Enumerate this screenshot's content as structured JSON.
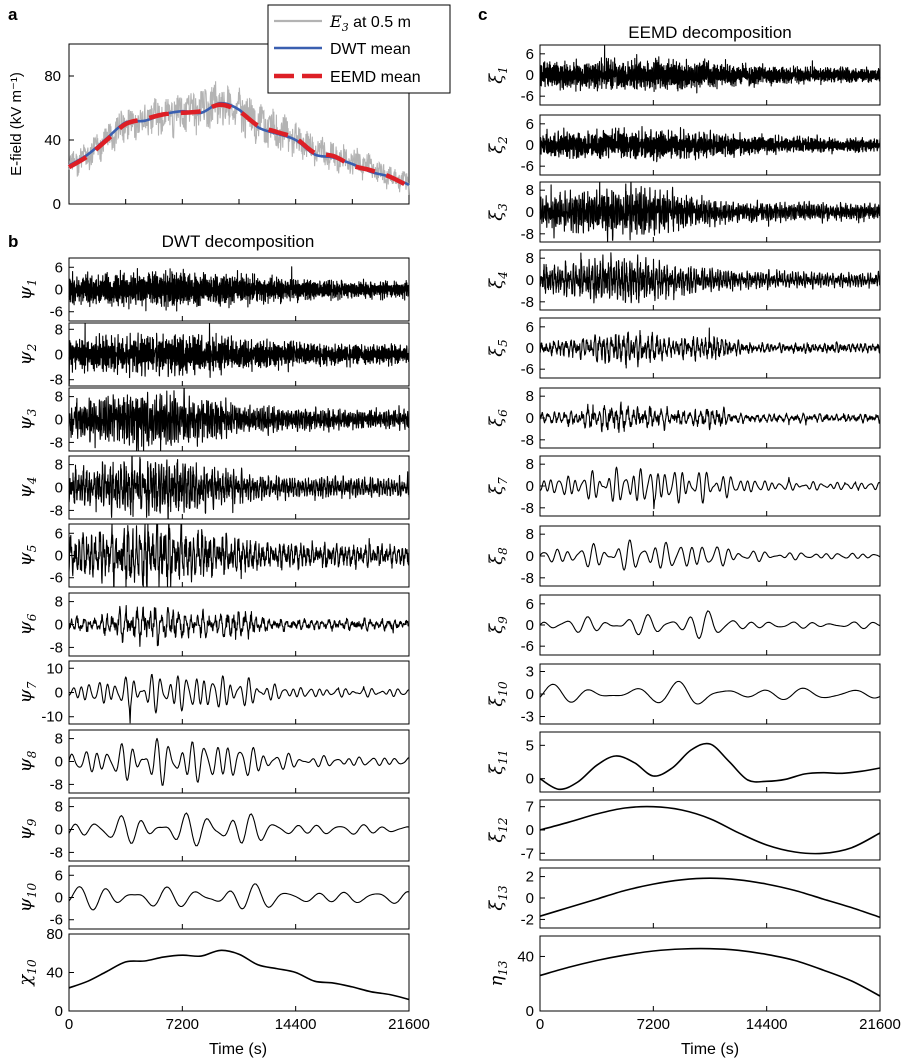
{
  "figure": {
    "panel_labels": {
      "a": "a",
      "b": "b",
      "c": "c"
    },
    "time_label": "Time (s)",
    "x_ticks": [
      0,
      7200,
      14400,
      21600
    ]
  },
  "chart_data": [
    {
      "type": "line",
      "panel": "a",
      "ylabel": "E-field (kV m⁻¹)",
      "xlim": [
        0,
        21600
      ],
      "ylim": [
        0,
        100
      ],
      "yticks": [
        0,
        40,
        80
      ],
      "legend": {
        "placement": "top-right",
        "entries": [
          {
            "label_symbol": "E",
            "label_sub": "3",
            "label_rest": " at 0.5 m",
            "color": "#b3b3b3",
            "style": "solid"
          },
          {
            "label": "DWT mean",
            "color": "#3a5fb0",
            "style": "solid"
          },
          {
            "label": "EEMD mean",
            "color": "#dd1f26",
            "style": "dashed"
          }
        ]
      },
      "series": [
        {
          "name": "E3 at 0.5 m",
          "color": "#b3b3b3",
          "kind": "raw",
          "noise_amplitude": 10,
          "x": [
            0,
            1200,
            2400,
            3600,
            4800,
            6000,
            7200,
            8400,
            9600,
            10800,
            12000,
            13200,
            14400,
            15600,
            16800,
            18000,
            19200,
            20400,
            21600
          ],
          "y": [
            25,
            30,
            40,
            50,
            52,
            55,
            57,
            60,
            62,
            58,
            50,
            45,
            40,
            33,
            30,
            27,
            22,
            17,
            12
          ]
        },
        {
          "name": "DWT mean",
          "color": "#3a5fb0",
          "x": [
            0,
            1200,
            2400,
            3600,
            4800,
            6000,
            7200,
            8400,
            9600,
            10800,
            12000,
            13200,
            14400,
            15600,
            16800,
            18000,
            19200,
            20400,
            21600
          ],
          "y": [
            24,
            31,
            41,
            51,
            52,
            56,
            58,
            57,
            63,
            59,
            48,
            44,
            40,
            31,
            29,
            25,
            20,
            17,
            12
          ]
        },
        {
          "name": "EEMD mean",
          "color": "#dd1f26",
          "x": [
            0,
            1200,
            2400,
            3600,
            4800,
            6000,
            7200,
            8400,
            9600,
            10800,
            12000,
            13200,
            14400,
            15600,
            16800,
            18000,
            19200,
            20400,
            21600
          ],
          "y": [
            23,
            30,
            40,
            50,
            53,
            56,
            57,
            58,
            62,
            58,
            49,
            45,
            41,
            32,
            30,
            24,
            21,
            17,
            11
          ]
        }
      ]
    },
    {
      "type": "line",
      "panel": "b",
      "title": "DWT decomposition",
      "xlim": [
        0,
        21600
      ],
      "components": [
        {
          "sym": "ψ",
          "sub": "1",
          "yticks": [
            6,
            0,
            -6
          ],
          "ylim": [
            -8.5,
            8.5
          ],
          "amp": 3.5,
          "period": 40,
          "env": "mid"
        },
        {
          "sym": "ψ",
          "sub": "2",
          "yticks": [
            8,
            0,
            -8
          ],
          "ylim": [
            -10,
            10
          ],
          "amp": 4.5,
          "period": 70,
          "env": "mid"
        },
        {
          "sym": "ψ",
          "sub": "3",
          "yticks": [
            8,
            0,
            -8
          ],
          "ylim": [
            -11,
            11
          ],
          "amp": 5,
          "period": 110,
          "env": "early"
        },
        {
          "sym": "ψ",
          "sub": "4",
          "yticks": [
            8,
            0,
            -8
          ],
          "ylim": [
            -11,
            11
          ],
          "amp": 5,
          "period": 170,
          "env": "early"
        },
        {
          "sym": "ψ",
          "sub": "5",
          "yticks": [
            6,
            0,
            -6
          ],
          "ylim": [
            -8.5,
            8.5
          ],
          "amp": 4.5,
          "period": 260,
          "env": "early"
        },
        {
          "sym": "ψ",
          "sub": "6",
          "yticks": [
            8,
            0,
            -8
          ],
          "ylim": [
            -11,
            11
          ],
          "amp": 4.5,
          "period": 380,
          "env": "spiky"
        },
        {
          "sym": "ψ",
          "sub": "7",
          "yticks": [
            10,
            0,
            -10
          ],
          "ylim": [
            -13,
            13
          ],
          "amp": 6.5,
          "period": 560,
          "env": "burst"
        },
        {
          "sym": "ψ",
          "sub": "8",
          "yticks": [
            8,
            0,
            -8
          ],
          "ylim": [
            -11,
            11
          ],
          "amp": 6.5,
          "period": 760,
          "env": "burst"
        },
        {
          "sym": "ψ",
          "sub": "9",
          "yticks": [
            8,
            0,
            -8
          ],
          "ylim": [
            -11,
            11
          ],
          "amp": 6,
          "period": 1400,
          "env": "late"
        },
        {
          "sym": "ψ",
          "sub": "10",
          "yticks": [
            6,
            0,
            -6
          ],
          "ylim": [
            -8.5,
            8.5
          ],
          "amp": 5,
          "period": 1900,
          "env": "wave"
        },
        {
          "sym": "χ",
          "sub": "10",
          "yticks": [
            80,
            40,
            0
          ],
          "ylim": [
            0,
            80
          ],
          "smooth": true,
          "x": [
            0,
            1200,
            2400,
            3600,
            4800,
            6000,
            7200,
            8400,
            9600,
            10800,
            12000,
            13200,
            14400,
            15600,
            16800,
            18000,
            19200,
            20400,
            21600
          ],
          "y": [
            24,
            31,
            41,
            51,
            52,
            56,
            58,
            57,
            63,
            59,
            48,
            44,
            40,
            31,
            29,
            25,
            20,
            17,
            12
          ]
        }
      ]
    },
    {
      "type": "line",
      "panel": "c",
      "title": "EEMD decomposition",
      "xlim": [
        0,
        21600
      ],
      "components": [
        {
          "sym": "ξ",
          "sub": "1",
          "yticks": [
            6,
            0,
            -6
          ],
          "ylim": [
            -8.5,
            8.5
          ],
          "amp": 3.2,
          "period": 40,
          "env": "mid"
        },
        {
          "sym": "ξ",
          "sub": "2",
          "yticks": [
            6,
            0,
            -6
          ],
          "ylim": [
            -8.5,
            8.5
          ],
          "amp": 3,
          "period": 70,
          "env": "mid"
        },
        {
          "sym": "ξ",
          "sub": "3",
          "yticks": [
            8,
            0,
            -8
          ],
          "ylim": [
            -11,
            11
          ],
          "amp": 4.5,
          "period": 110,
          "env": "early"
        },
        {
          "sym": "ξ",
          "sub": "4",
          "yticks": [
            8,
            0,
            -8
          ],
          "ylim": [
            -11,
            11
          ],
          "amp": 4,
          "period": 170,
          "env": "early"
        },
        {
          "sym": "ξ",
          "sub": "5",
          "yticks": [
            6,
            0,
            -6
          ],
          "ylim": [
            -8.5,
            8.5
          ],
          "amp": 3.2,
          "period": 260,
          "env": "spiky"
        },
        {
          "sym": "ξ",
          "sub": "6",
          "yticks": [
            8,
            0,
            -8
          ],
          "ylim": [
            -11,
            11
          ],
          "amp": 3.5,
          "period": 360,
          "env": "spiky"
        },
        {
          "sym": "ξ",
          "sub": "7",
          "yticks": [
            8,
            0,
            -8
          ],
          "ylim": [
            -11,
            11
          ],
          "amp": 5.5,
          "period": 520,
          "env": "burst"
        },
        {
          "sym": "ξ",
          "sub": "8",
          "yticks": [
            8,
            0,
            -8
          ],
          "ylim": [
            -11,
            11
          ],
          "amp": 4.5,
          "period": 780,
          "env": "burst"
        },
        {
          "sym": "ξ",
          "sub": "9",
          "yticks": [
            6,
            0,
            -6
          ],
          "ylim": [
            -8.5,
            8.5
          ],
          "amp": 3,
          "period": 1300,
          "env": "late"
        },
        {
          "sym": "ξ",
          "sub": "10",
          "yticks": [
            3,
            0,
            -3
          ],
          "ylim": [
            -4,
            4
          ],
          "amp": 2.2,
          "period": 2700,
          "env": "wave"
        },
        {
          "sym": "ξ",
          "sub": "11",
          "yticks": [
            5,
            0
          ],
          "ylim": [
            -2,
            7
          ],
          "smooth": true,
          "x": [
            0,
            1200,
            2400,
            3600,
            4800,
            6000,
            7200,
            8400,
            9600,
            10800,
            12000,
            13200,
            14400,
            15600,
            16800,
            18000,
            19200,
            20400,
            21600
          ],
          "y": [
            0,
            -1.6,
            -0.5,
            2.0,
            3.4,
            2.4,
            0.4,
            1.6,
            4.3,
            5.2,
            2.6,
            -0.2,
            -0.4,
            -0.1,
            0.7,
            0.9,
            0.8,
            1.1,
            1.6
          ]
        },
        {
          "sym": "ξ",
          "sub": "12",
          "yticks": [
            7,
            0,
            -7
          ],
          "ylim": [
            -9,
            9
          ],
          "smooth": true,
          "x": [
            0,
            1800,
            3600,
            5400,
            7200,
            9000,
            10800,
            12600,
            14400,
            16200,
            18000,
            19800,
            21600
          ],
          "y": [
            0,
            2.3,
            4.8,
            6.6,
            7.0,
            6.0,
            3.4,
            -0.8,
            -4.5,
            -6.6,
            -7.0,
            -5.3,
            -0.9
          ]
        },
        {
          "sym": "ξ",
          "sub": "13",
          "yticks": [
            2,
            0,
            -2
          ],
          "ylim": [
            -2.8,
            2.8
          ],
          "smooth": true,
          "x": [
            0,
            1800,
            3600,
            5400,
            7200,
            9000,
            10800,
            12600,
            14400,
            16200,
            18000,
            19800,
            21600
          ],
          "y": [
            -1.7,
            -0.9,
            -0.1,
            0.7,
            1.3,
            1.7,
            1.85,
            1.7,
            1.3,
            0.7,
            -0.1,
            -0.9,
            -1.8
          ]
        },
        {
          "sym": "η",
          "sub": "13",
          "yticks": [
            40,
            0
          ],
          "ylim": [
            0,
            55
          ],
          "smooth": true,
          "x": [
            0,
            1800,
            3600,
            5400,
            7200,
            9000,
            10800,
            12600,
            14400,
            16200,
            18000,
            19800,
            21600
          ],
          "y": [
            26,
            32,
            37,
            41,
            44,
            45.5,
            45.7,
            44.5,
            41.5,
            37,
            30,
            22,
            11
          ]
        }
      ]
    }
  ]
}
